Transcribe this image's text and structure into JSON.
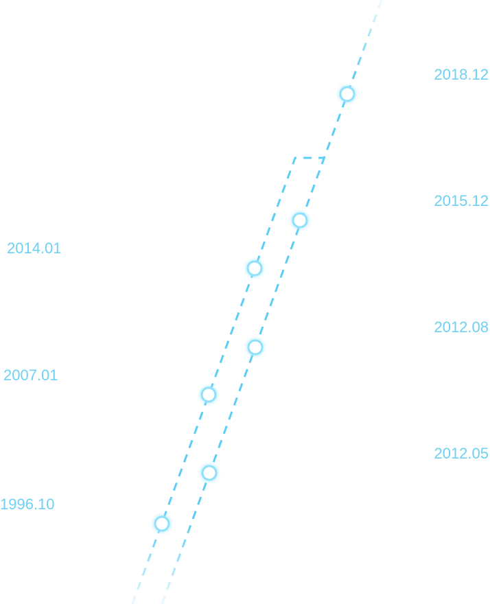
{
  "left_dates": [
    "2014.01",
    "2007.01",
    "1996.10"
  ],
  "right_dates": [
    "2018.12",
    "2015.12",
    "2012.08",
    "2012.05"
  ]
}
